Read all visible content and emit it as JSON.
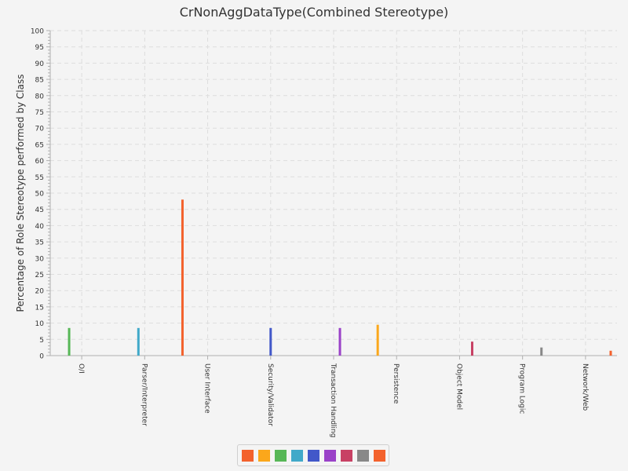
{
  "chart_data": {
    "type": "bar",
    "title": "CrNonAggDataType(Combined Stereotype)",
    "xlabel": "",
    "ylabel": "Percentage of Role Stereotype performed by Class",
    "ylim": [
      0,
      100
    ],
    "ytick_step": 5,
    "grid": true,
    "legend_position": "bottom",
    "categories": [
      "O/I",
      "Parser/Interpreter",
      "User Interface",
      "Security/Validator",
      "Transaction Handling",
      "Persistence",
      "Object Model",
      "Program Logic",
      "Network/Web"
    ],
    "series": [
      {
        "color": "#f3622d",
        "values": [
          0,
          0,
          48,
          0,
          0,
          0,
          0,
          0,
          0
        ]
      },
      {
        "color": "#fba71b",
        "values": [
          0,
          0,
          0,
          0,
          0,
          9.5,
          0,
          0,
          0
        ]
      },
      {
        "color": "#57b757",
        "values": [
          8.5,
          0,
          0,
          0,
          0,
          0,
          0,
          0,
          0
        ]
      },
      {
        "color": "#41a9c9",
        "values": [
          0,
          8.5,
          0,
          0,
          0,
          0,
          0,
          0,
          0
        ]
      },
      {
        "color": "#4258c9",
        "values": [
          0,
          0,
          0,
          8.5,
          0,
          0,
          0,
          0,
          0
        ]
      },
      {
        "color": "#9a42c8",
        "values": [
          0,
          0,
          0,
          0,
          8.5,
          0,
          0,
          0,
          0
        ]
      },
      {
        "color": "#c84164",
        "values": [
          0,
          0,
          0,
          0,
          0,
          0,
          4.3,
          0,
          0
        ]
      },
      {
        "color": "#888888",
        "values": [
          0,
          0,
          0,
          0,
          0,
          0,
          0,
          2.5,
          0
        ]
      },
      {
        "color": "#f3622d",
        "values": [
          0,
          0,
          0,
          0,
          0,
          0,
          0,
          0,
          1.5
        ]
      }
    ]
  }
}
